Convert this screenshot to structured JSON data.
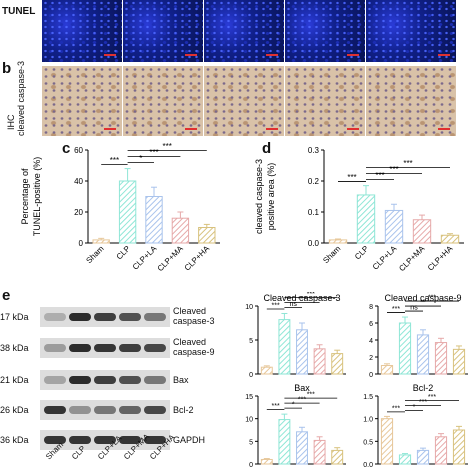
{
  "panel_a": {
    "row_label": "TUNEL",
    "n_images": 5
  },
  "panel_b": {
    "letter": "b",
    "row_label_line1": "IHC",
    "row_label_line2": "cleaved caspase-3"
  },
  "panel_c": {
    "letter": "c"
  },
  "panel_d": {
    "letter": "d"
  },
  "panel_e": {
    "letter": "e",
    "kda": [
      "17 kDa",
      "38 kDa",
      "21 kDa",
      "26 kDa",
      "36 kDa"
    ],
    "proteins": [
      "Cleaved caspase-3",
      "Cleaved caspase-9",
      "Bax",
      "Bcl-2",
      "GAPDH"
    ],
    "lane_labels": [
      "Sham",
      "CLP",
      "CLP+LA",
      "CLP+MA",
      "CLP+HA"
    ],
    "band_intensity": [
      [
        0.25,
        0.95,
        0.85,
        0.75,
        0.55
      ],
      [
        0.35,
        0.95,
        0.9,
        0.85,
        0.8
      ],
      [
        0.3,
        0.95,
        0.85,
        0.75,
        0.55
      ],
      [
        0.9,
        0.4,
        0.55,
        0.65,
        0.8
      ],
      [
        0.9,
        0.9,
        0.9,
        0.9,
        0.9
      ]
    ]
  },
  "colors": {
    "sham": "#e7c79a",
    "clp": "#8fe6d6",
    "la": "#a9c3ec",
    "ma": "#e6a9a9",
    "ha": "#d8c27e"
  },
  "chart_data": [
    {
      "type": "bar",
      "panel": "c",
      "categories": [
        "Sham",
        "CLP",
        "CLP+LA",
        "CLP+MA",
        "CLP+HA"
      ],
      "values": [
        2,
        40,
        30,
        16,
        10
      ],
      "errors": [
        1,
        8,
        6,
        4,
        2
      ],
      "ylabel_line1": "Percentage of",
      "ylabel_line2": "TUNEL-positive (%)",
      "ylim": [
        0,
        60
      ],
      "yticks": [
        "0",
        "20",
        "40",
        "60"
      ],
      "sig": [
        "***",
        "*",
        "***",
        "***"
      ]
    },
    {
      "type": "bar",
      "panel": "d",
      "categories": [
        "Sham",
        "CLP",
        "CLP+LA",
        "CLP+MA",
        "CLP+HA"
      ],
      "values": [
        0.01,
        0.155,
        0.105,
        0.075,
        0.025
      ],
      "errors": [
        0.003,
        0.03,
        0.02,
        0.015,
        0.005
      ],
      "ylabel_line1": "cleaved caspase-3",
      "ylabel_line2": "positive area (%)",
      "ylim": [
        0,
        0.3
      ],
      "yticks": [
        "0.0",
        "0.1",
        "0.2",
        "0.3"
      ],
      "sig": [
        "***",
        "***",
        "***",
        "***"
      ]
    },
    {
      "type": "bar",
      "panel": "e1",
      "title": "Cleaved caspase-3",
      "categories": [
        "Sham",
        "CLP",
        "CLP+LA",
        "CLP+MA",
        "CLP+HA"
      ],
      "values": [
        1,
        8,
        6.5,
        3.7,
        3
      ],
      "errors": [
        0.2,
        0.9,
        1,
        0.6,
        0.5
      ],
      "ylim": [
        0,
        10
      ],
      "yticks": [
        "0",
        "5",
        "10"
      ],
      "sig": [
        "***",
        "ns",
        "***",
        "***"
      ]
    },
    {
      "type": "bar",
      "panel": "e2",
      "title": "Cleaved caspase-9",
      "categories": [
        "Sham",
        "CLP",
        "CLP+LA",
        "CLP+MA",
        "CLP+HA"
      ],
      "values": [
        1,
        6,
        4.6,
        3.7,
        2.9
      ],
      "errors": [
        0.2,
        0.7,
        0.6,
        0.5,
        0.4
      ],
      "ylim": [
        0,
        8
      ],
      "yticks": [
        "0",
        "2",
        "4",
        "6",
        "8"
      ],
      "sig": [
        "***",
        "ns",
        "**",
        "***"
      ]
    },
    {
      "type": "bar",
      "panel": "e3",
      "title": "Bax",
      "categories": [
        "Sham",
        "CLP",
        "CLP+LA",
        "CLP+MA",
        "CLP+HA"
      ],
      "values": [
        1,
        9.8,
        7.1,
        5.2,
        3
      ],
      "errors": [
        0.2,
        1.2,
        1,
        0.8,
        0.6
      ],
      "ylim": [
        0,
        15
      ],
      "yticks": [
        "0",
        "5",
        "10",
        "15"
      ],
      "sig": [
        "***",
        "*",
        "***",
        "***"
      ]
    },
    {
      "type": "bar",
      "panel": "e4",
      "title": "Bcl-2",
      "categories": [
        "Sham",
        "CLP",
        "CLP+LA",
        "CLP+MA",
        "CLP+HA"
      ],
      "values": [
        1,
        0.2,
        0.3,
        0.6,
        0.75
      ],
      "errors": [
        0.05,
        0.03,
        0.05,
        0.07,
        0.08
      ],
      "ylim": [
        0,
        1.5
      ],
      "yticks": [
        "0.0",
        "0.5",
        "1.0",
        "1.5"
      ],
      "sig": [
        "***",
        "*",
        "***",
        "***"
      ]
    }
  ]
}
